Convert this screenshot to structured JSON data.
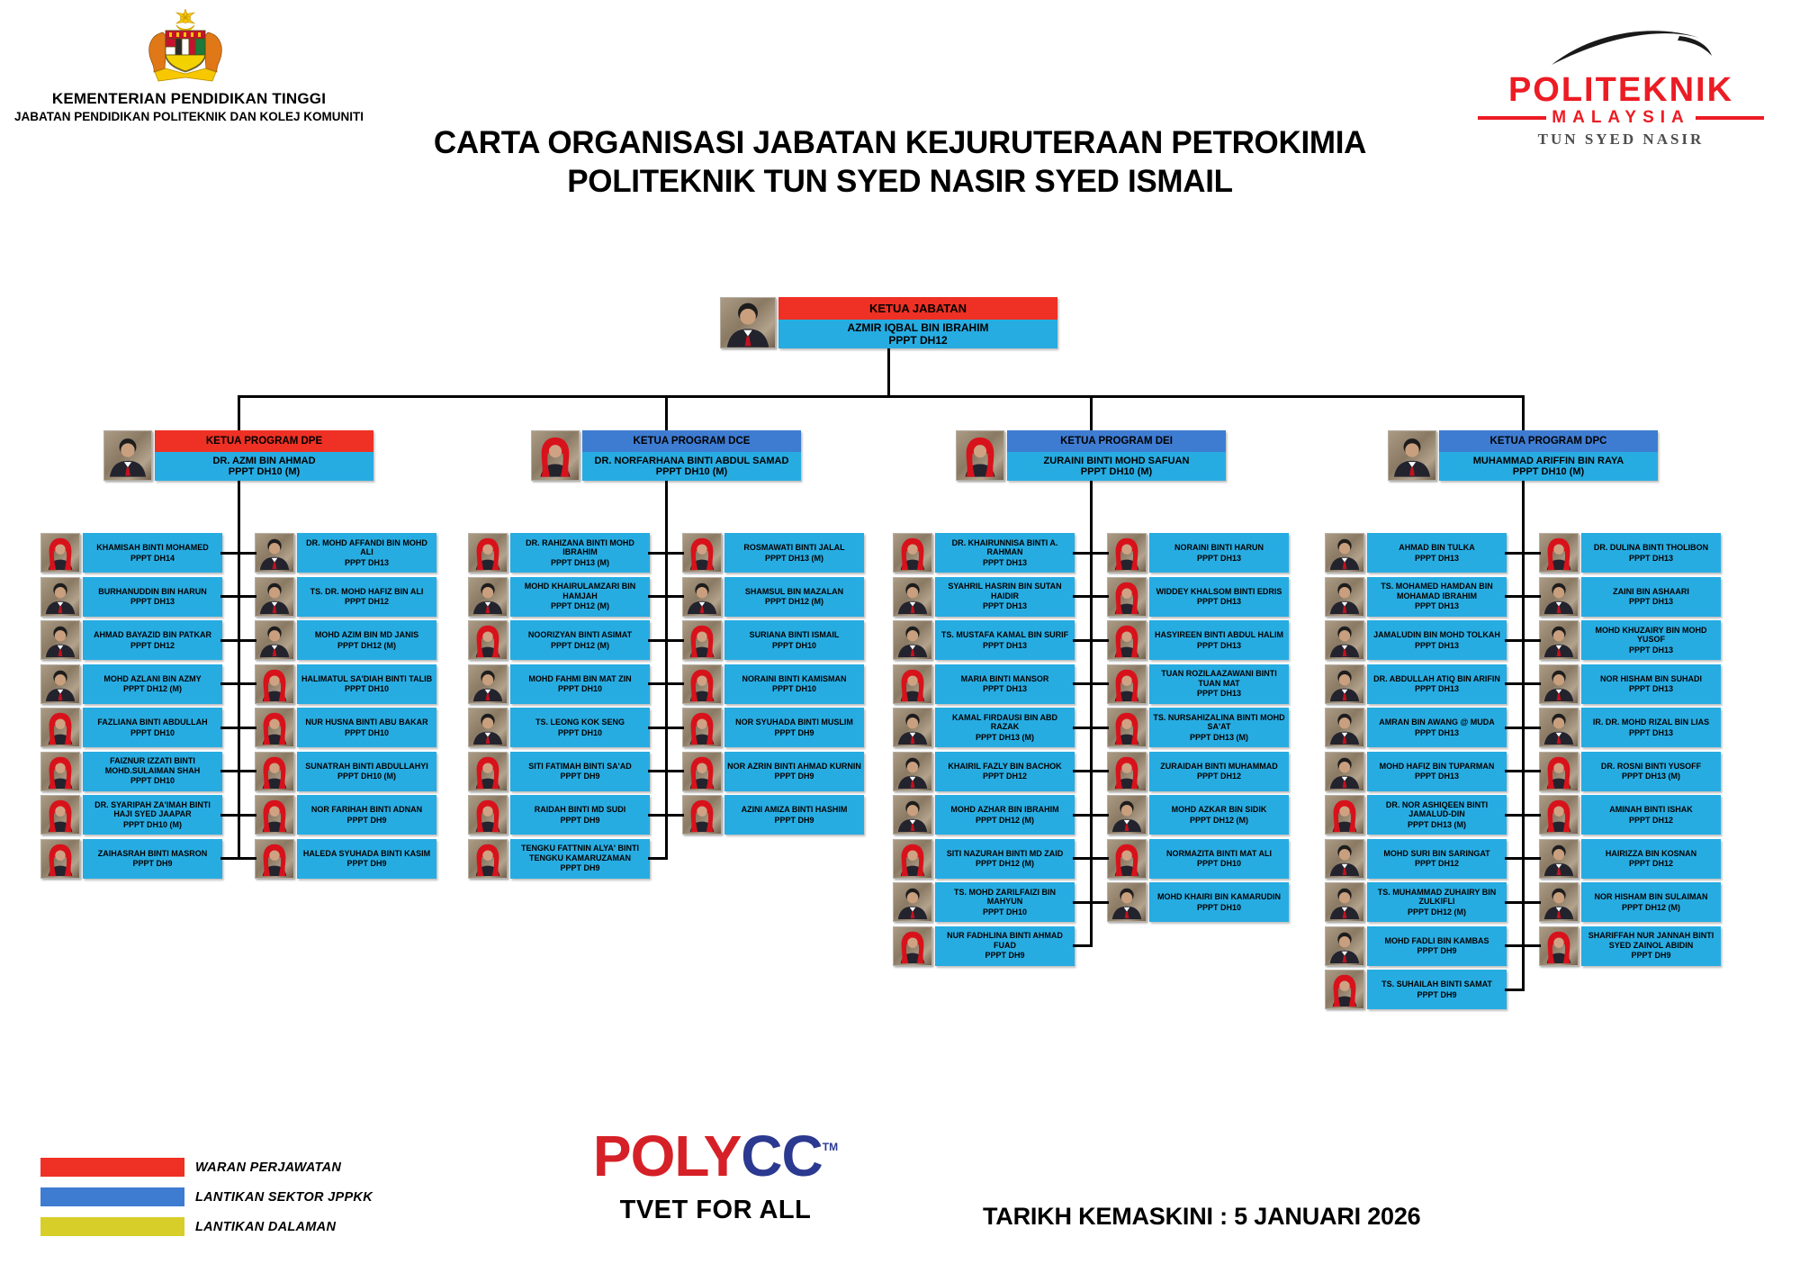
{
  "header": {
    "ministry_line1": "KEMENTERIAN PENDIDIKAN TINGGI",
    "ministry_line2": "JABATAN PENDIDIKAN POLITEKNIK DAN KOLEJ KOMUNITI",
    "politeknik_logo": {
      "word": "POLITEKNIK",
      "sub": "MALAYSIA",
      "campus": "TUN SYED NASIR"
    },
    "title_line1": "CARTA ORGANISASI JABATAN KEJURUTERAAN PETROKIMIA",
    "title_line2": "POLITEKNIK TUN SYED NASIR SYED ISMAIL"
  },
  "colors": {
    "red": "#ee3124",
    "blue": "#3e7cd2",
    "cyan": "#27ace2",
    "yellow": "#d8ce29"
  },
  "chart": {
    "head": {
      "role": "KETUA JABATAN",
      "name": "AZMIR IQBAL BIN IBRAHIM",
      "grade": "PPPT DH12",
      "header_color": "#ee3124"
    },
    "programs": [
      {
        "role": "KETUA PROGRAM DPE",
        "name": "DR. AZMI BIN AHMAD",
        "grade": "PPPT DH10 (M)",
        "header_color": "#ee3124",
        "left": [
          {
            "name": "KHAMISAH BINTI MOHAMED",
            "grade": "PPPT DH14"
          },
          {
            "name": "BURHANUDDIN BIN HARUN",
            "grade": "PPPT DH13"
          },
          {
            "name": "AHMAD BAYAZID BIN PATKAR",
            "grade": "PPPT DH12"
          },
          {
            "name": "MOHD AZLANI BIN AZMY",
            "grade": "PPPT DH12 (M)"
          },
          {
            "name": "FAZLIANA BINTI ABDULLAH",
            "grade": "PPPT DH10"
          },
          {
            "name": "FAIZNUR IZZATI BINTI MOHD.SULAIMAN SHAH",
            "grade": "PPPT DH10"
          },
          {
            "name": "DR. SYARIPAH ZA'IMAH BINTI HAJI SYED JAAPAR",
            "grade": "PPPT DH10 (M)"
          },
          {
            "name": "ZAIHASRAH BINTI MASRON",
            "grade": "PPPT DH9"
          }
        ],
        "right": [
          {
            "name": "DR. MOHD AFFANDI BIN MOHD ALI",
            "grade": "PPPT DH13"
          },
          {
            "name": "TS. DR. MOHD HAFIZ BIN ALI",
            "grade": "PPPT DH12"
          },
          {
            "name": "MOHD AZIM BIN MD JANIS",
            "grade": "PPPT DH12 (M)"
          },
          {
            "name": "HALIMATUL SA'DIAH BINTI TALIB",
            "grade": "PPPT DH10"
          },
          {
            "name": "NUR HUSNA BINTI ABU BAKAR",
            "grade": "PPPT DH10"
          },
          {
            "name": "SUNATRAH BINTI ABDULLAHYI",
            "grade": "PPPT DH10 (M)"
          },
          {
            "name": "NOR FARIHAH BINTI ADNAN",
            "grade": "PPPT DH9"
          },
          {
            "name": "HALEDA SYUHADA BINTI KASIM",
            "grade": "PPPT DH9"
          }
        ]
      },
      {
        "role": "KETUA PROGRAM DCE",
        "name": "DR. NORFARHANA BINTI ABDUL SAMAD",
        "grade": "PPPT DH10 (M)",
        "header_color": "#3e7cd2",
        "left": [
          {
            "name": "DR. RAHIZANA BINTI MOHD IBRAHIM",
            "grade": "PPPT DH13 (M)"
          },
          {
            "name": "MOHD KHAIRULAMZARI BIN HAMJAH",
            "grade": "PPPT DH12 (M)"
          },
          {
            "name": "NOORIZYAN BINTI ASIMAT",
            "grade": "PPPT DH12 (M)"
          },
          {
            "name": "MOHD FAHMI BIN MAT ZIN",
            "grade": "PPPT DH10"
          },
          {
            "name": "TS. LEONG KOK SENG",
            "grade": "PPPT DH10"
          },
          {
            "name": "SITI FATIMAH BINTI SA'AD",
            "grade": "PPPT DH9"
          },
          {
            "name": "RAIDAH BINTI MD SUDI",
            "grade": "PPPT DH9"
          },
          {
            "name": "TENGKU FATTNIN ALYA' BINTI TENGKU KAMARUZAMAN",
            "grade": "PPPT DH9"
          }
        ],
        "right": [
          {
            "name": "ROSMAWATI BINTI JALAL",
            "grade": "PPPT DH13 (M)"
          },
          {
            "name": "SHAMSUL BIN MAZALAN",
            "grade": "PPPT DH12 (M)"
          },
          {
            "name": "SURIANA BINTI ISMAIL",
            "grade": "PPPT DH10"
          },
          {
            "name": "NORAINI BINTI KAMISMAN",
            "grade": "PPPT DH10"
          },
          {
            "name": "NOR SYUHADA BINTI MUSLIM",
            "grade": "PPPT DH9"
          },
          {
            "name": "NOR AZRIN BINTI AHMAD KURNIN",
            "grade": "PPPT DH9"
          },
          {
            "name": "AZINI AMIZA BINTI HASHIM",
            "grade": "PPPT DH9"
          }
        ]
      },
      {
        "role": "KETUA PROGRAM DEI",
        "name": "ZURAINI BINTI MOHD SAFUAN",
        "grade": "PPPT DH10 (M)",
        "header_color": "#3e7cd2",
        "left": [
          {
            "name": "DR. KHAIRUNNISA BINTI A. RAHMAN",
            "grade": "PPPT DH13"
          },
          {
            "name": "SYAHRIL HASRIN BIN SUTAN HAIDIR",
            "grade": "PPPT DH13"
          },
          {
            "name": "TS. MUSTAFA KAMAL BIN SURIF",
            "grade": "PPPT DH13"
          },
          {
            "name": "MARIA BINTI MANSOR",
            "grade": "PPPT DH13"
          },
          {
            "name": "KAMAL FIRDAUSI BIN ABD RAZAK",
            "grade": "PPPT DH13 (M)"
          },
          {
            "name": "KHAIRIL FAZLY BIN BACHOK",
            "grade": "PPPT DH12"
          },
          {
            "name": "MOHD AZHAR BIN IBRAHIM",
            "grade": "PPPT DH12 (M)"
          },
          {
            "name": "SITI NAZURAH BINTI MD ZAID",
            "grade": "PPPT DH12 (M)"
          },
          {
            "name": "TS. MOHD ZARILFAIZI BIN MAHYUN",
            "grade": "PPPT DH10"
          },
          {
            "name": "NUR FADHLINA BINTI AHMAD FUAD",
            "grade": "PPPT DH9"
          }
        ],
        "right": [
          {
            "name": "NORAINI BINTI HARUN",
            "grade": "PPPT DH13"
          },
          {
            "name": "WIDDEY KHALSOM BINTI EDRIS",
            "grade": "PPPT DH13"
          },
          {
            "name": "HASYIREEN BINTI ABDUL HALIM",
            "grade": "PPPT DH13"
          },
          {
            "name": "TUAN ROZILAAZAWANI BINTI TUAN MAT",
            "grade": "PPPT DH13"
          },
          {
            "name": "TS. NURSAHIZALINA BINTI MOHD SA'AT",
            "grade": "PPPT DH13 (M)"
          },
          {
            "name": "ZURAIDAH BINTI MUHAMMAD",
            "grade": "PPPT DH12"
          },
          {
            "name": "MOHD AZKAR BIN SIDIK",
            "grade": "PPPT DH12 (M)"
          },
          {
            "name": "NORMAZITA BINTI MAT ALI",
            "grade": "PPPT DH10"
          },
          {
            "name": "MOHD KHAIRI BIN KAMARUDIN",
            "grade": "PPPT DH10"
          }
        ]
      },
      {
        "role": "KETUA PROGRAM DPC",
        "name": "MUHAMMAD ARIFFIN BIN RAYA",
        "grade": "PPPT DH10 (M)",
        "header_color": "#3e7cd2",
        "left": [
          {
            "name": "AHMAD BIN TULKA",
            "grade": "PPPT DH13"
          },
          {
            "name": "TS. MOHAMED HAMDAN BIN MOHAMAD IBRAHIM",
            "grade": "PPPT DH13"
          },
          {
            "name": "JAMALUDIN BIN MOHD TOLKAH",
            "grade": "PPPT DH13"
          },
          {
            "name": "DR. ABDULLAH ATIQ BIN ARIFIN",
            "grade": "PPPT DH13"
          },
          {
            "name": "AMRAN BIN AWANG @ MUDA",
            "grade": "PPPT DH13"
          },
          {
            "name": "MOHD HAFIZ BIN TUPARMAN",
            "grade": "PPPT DH13"
          },
          {
            "name": "DR. NOR ASHIQEEN BINTI JAMALUD-DIN",
            "grade": "PPPT DH13 (M)"
          },
          {
            "name": "MOHD SURI BIN SARINGAT",
            "grade": "PPPT DH12"
          },
          {
            "name": "TS. MUHAMMAD ZUHAIRY BIN ZULKIFLI",
            "grade": "PPPT DH12 (M)"
          },
          {
            "name": "MOHD FADLI BIN KAMBAS",
            "grade": "PPPT DH9"
          },
          {
            "name": "TS. SUHAILAH BINTI SAMAT",
            "grade": "PPPT DH9"
          }
        ],
        "right": [
          {
            "name": "DR. DULINA BINTI THOLIBON",
            "grade": "PPPT DH13"
          },
          {
            "name": "ZAINI BIN ASHAARI",
            "grade": "PPPT DH13"
          },
          {
            "name": "MOHD KHUZAIRY BIN MOHD YUSOF",
            "grade": "PPPT DH13"
          },
          {
            "name": "NOR HISHAM BIN SUHADI",
            "grade": "PPPT DH13"
          },
          {
            "name": "IR. DR. MOHD RIZAL BIN LIAS",
            "grade": "PPPT DH13"
          },
          {
            "name": "DR. ROSNI BINTI YUSOFF",
            "grade": "PPPT DH13 (M)"
          },
          {
            "name": "AMINAH BINTI ISHAK",
            "grade": "PPPT DH12"
          },
          {
            "name": "HAIRIZZA BIN KOSNAN",
            "grade": "PPPT DH12"
          },
          {
            "name": "NOR HISHAM BIN SULAIMAN",
            "grade": "PPPT DH12 (M)"
          },
          {
            "name": "SHARIFFAH NUR JANNAH BINTI SYED ZAINOL ABIDIN",
            "grade": "PPPT DH9"
          }
        ]
      }
    ]
  },
  "legend": [
    {
      "label": "WARAN PERJAWATAN",
      "color": "#ee3124"
    },
    {
      "label": "LANTIKAN SEKTOR JPPKK",
      "color": "#3e7cd2"
    },
    {
      "label": "LANTIKAN DALAMAN",
      "color": "#d8ce29"
    }
  ],
  "footer": {
    "polycc_poly": "POLY",
    "polycc_cc": "CC",
    "polycc_tm": "TM",
    "tagline": "TVET FOR ALL",
    "updated": "TARIKH KEMASKINI : 5 JANUARI 2026"
  }
}
